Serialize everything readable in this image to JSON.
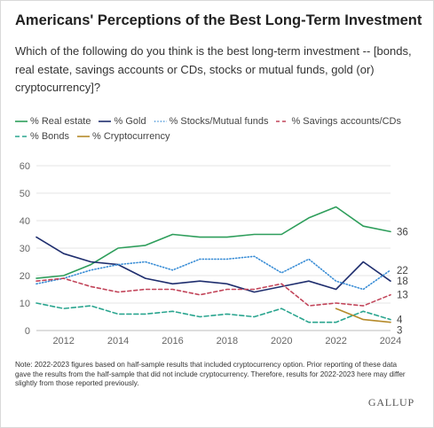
{
  "title": "Americans' Perceptions of the Best Long-Term Investment",
  "subtitle": "Which of the following do you think is the best long-term investment -- [bonds, real estate, savings accounts or CDs, stocks or mutual funds, gold (or) cryptocurrency]?",
  "note": "Note: 2022-2023 figures based on half-sample results that included cryptocurrency option. Prior reporting of these data gave the results from the half-sample that did not include cryptocurrency. Therefore, results for 2022-2023 here may differ slightly from those reported previously.",
  "brand": "GALLUP",
  "chart_data": {
    "type": "line",
    "title": "Americans' Perceptions of the Best Long-Term Investment",
    "xlabel": "",
    "ylabel": "",
    "x": [
      2011,
      2012,
      2013,
      2014,
      2015,
      2016,
      2017,
      2018,
      2019,
      2020,
      2021,
      2022,
      2023,
      2024
    ],
    "xticks": [
      2012,
      2014,
      2016,
      2018,
      2020,
      2022,
      2024
    ],
    "xlim": [
      2011,
      2024
    ],
    "ylim": [
      0,
      60
    ],
    "yticks": [
      0,
      10,
      20,
      30,
      40,
      50,
      60
    ],
    "grid": "horizontal",
    "legend_position": "top",
    "series": [
      {
        "name": "% Real estate",
        "color": "#2e9e5b",
        "style": "solid",
        "end_label": "36",
        "x": [
          2011,
          2012,
          2013,
          2014,
          2015,
          2016,
          2017,
          2018,
          2019,
          2020,
          2021,
          2022,
          2023,
          2024
        ],
        "values": [
          19,
          20,
          24,
          30,
          31,
          35,
          34,
          34,
          35,
          35,
          41,
          45,
          38,
          36
        ]
      },
      {
        "name": "% Gold",
        "color": "#1f2e6e",
        "style": "solid",
        "end_label": "18",
        "x": [
          2011,
          2012,
          2013,
          2014,
          2015,
          2016,
          2017,
          2018,
          2019,
          2020,
          2021,
          2022,
          2023,
          2024
        ],
        "values": [
          34,
          28,
          25,
          24,
          19,
          17,
          18,
          17,
          14,
          16,
          18,
          15,
          25,
          18
        ]
      },
      {
        "name": "% Stocks/Mutual funds",
        "color": "#3b8ed6",
        "style": "dotted",
        "end_label": "22",
        "x": [
          2011,
          2012,
          2013,
          2014,
          2015,
          2016,
          2017,
          2018,
          2019,
          2020,
          2021,
          2022,
          2023,
          2024
        ],
        "values": [
          17,
          19,
          22,
          24,
          25,
          22,
          26,
          26,
          27,
          21,
          26,
          18,
          15,
          22
        ]
      },
      {
        "name": "% Savings accounts/CDs",
        "color": "#c2455a",
        "style": "dashed",
        "end_label": "13",
        "x": [
          2011,
          2012,
          2013,
          2014,
          2015,
          2016,
          2017,
          2018,
          2019,
          2020,
          2021,
          2022,
          2023,
          2024
        ],
        "values": [
          18,
          19,
          16,
          14,
          15,
          15,
          13,
          15,
          15,
          17,
          9,
          10,
          9,
          13
        ]
      },
      {
        "name": "% Bonds",
        "color": "#2aa58f",
        "style": "dashdot",
        "end_label": "4",
        "x": [
          2011,
          2012,
          2013,
          2014,
          2015,
          2016,
          2017,
          2018,
          2019,
          2020,
          2021,
          2022,
          2023,
          2024
        ],
        "values": [
          10,
          8,
          9,
          6,
          6,
          7,
          5,
          6,
          5,
          8,
          3,
          3,
          7,
          4
        ]
      },
      {
        "name": "% Cryptocurrency",
        "color": "#b58a2a",
        "style": "solid",
        "end_label": "3",
        "x": [
          2022,
          2023,
          2024
        ],
        "values": [
          8,
          4,
          3
        ]
      }
    ]
  }
}
